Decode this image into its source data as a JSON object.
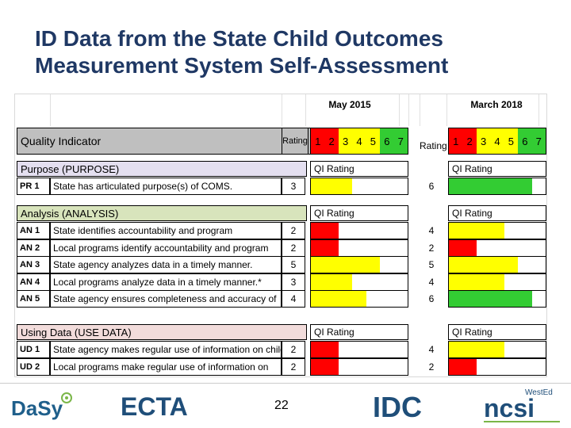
{
  "title": "ID Data from the State Child Outcomes Measurement System Self-Assessment",
  "periods": {
    "first": "May 2015",
    "second": "March 2018"
  },
  "header": {
    "quality_indicator": "Quality Indicator",
    "rating": "Rating",
    "rating_right": "Rating"
  },
  "scale": [
    "1",
    "2",
    "3",
    "4",
    "5",
    "6",
    "7"
  ],
  "qi_rating_label": "QI Rating",
  "colors": {
    "red": "#ff0000",
    "yellow": "#ffff00",
    "green": "#33cc33",
    "purpose_bg": "#e4dff0",
    "analysis_bg": "#d8e4bc",
    "usedata_bg": "#f2dcdb"
  },
  "sections": [
    {
      "id": "purpose",
      "label": "Purpose (PURPOSE)",
      "rows": [
        {
          "code": "PR 1",
          "desc": "State has articulated purpose(s) of COMS.",
          "rating_2015": 3,
          "rating_2018": 6
        }
      ]
    },
    {
      "id": "analysis",
      "label": "Analysis (ANALYSIS)",
      "rows": [
        {
          "code": "AN 1",
          "desc": "State identifies accountability and program",
          "rating_2015": 2,
          "rating_2018": 4
        },
        {
          "code": "AN 2",
          "desc": "Local programs identify accountability and program",
          "rating_2015": 2,
          "rating_2018": 2
        },
        {
          "code": "AN 3",
          "desc": "State agency analyzes data in a timely manner.",
          "rating_2015": 5,
          "rating_2018": 5
        },
        {
          "code": "AN 4",
          "desc": "Local programs analyze data in a timely manner.*",
          "rating_2015": 3,
          "rating_2018": 4
        },
        {
          "code": "AN 5",
          "desc": "State agency ensures completeness and accuracy of",
          "rating_2015": 4,
          "rating_2018": 6
        }
      ]
    },
    {
      "id": "usedata",
      "label": "Using Data (USE DATA)",
      "rows": [
        {
          "code": "UD 1",
          "desc": "State agency makes regular use of information on child",
          "rating_2015": 2,
          "rating_2018": 4
        },
        {
          "code": "UD 2",
          "desc": "Local programs make regular use of information on",
          "rating_2015": 2,
          "rating_2018": 2
        }
      ]
    }
  ],
  "footer": {
    "page_number": "22",
    "logos": [
      "DaSy",
      "ECTA",
      "IDC",
      "WestEd",
      "ncsi"
    ]
  }
}
